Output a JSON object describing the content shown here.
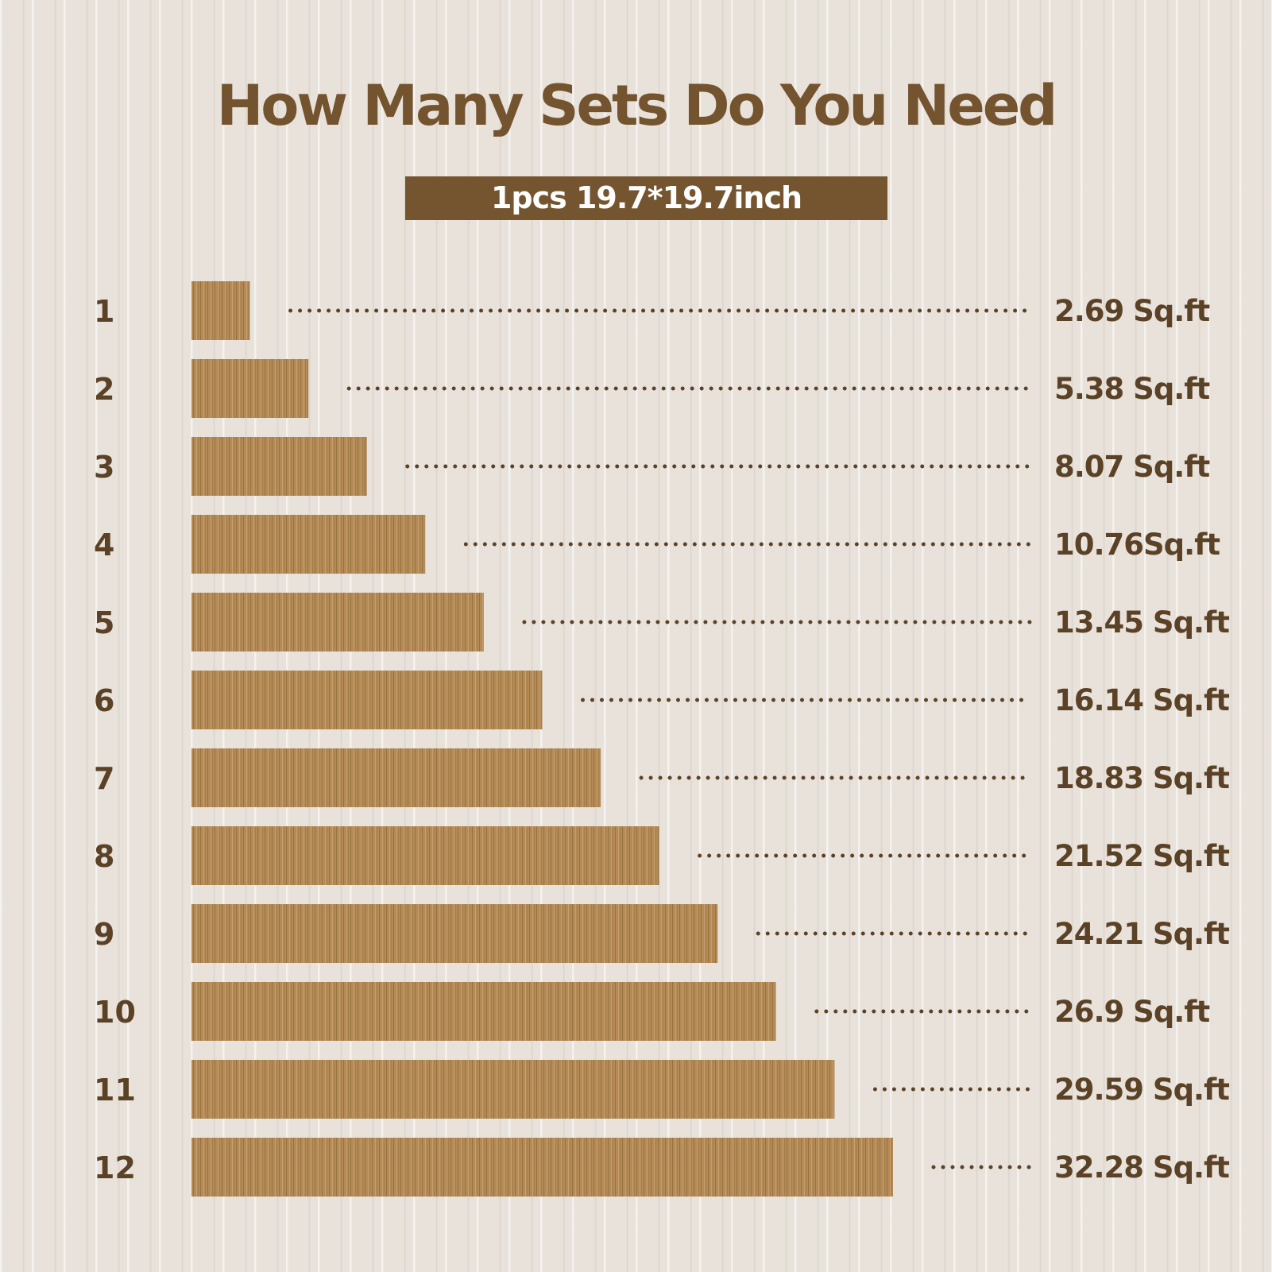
{
  "title": "How Many  Sets Do You Need",
  "subtitle": "1pcs 19.7*19.7inch",
  "colors": {
    "title": "#74532f",
    "banner": "#75552f",
    "bar": "#b48a56",
    "text": "#5b4226"
  },
  "chart_data": {
    "type": "bar",
    "orientation": "horizontal",
    "title": "How Many  Sets Do You Need",
    "subtitle": "1pcs 19.7*19.7inch",
    "xlabel": "",
    "ylabel": "",
    "grid": false,
    "unit": "Sq.ft",
    "categories": [
      "1",
      "2",
      "3",
      "4",
      "5",
      "6",
      "7",
      "8",
      "9",
      "10",
      "11",
      "12"
    ],
    "values": [
      2.69,
      5.38,
      8.07,
      10.76,
      13.45,
      16.14,
      18.83,
      21.52,
      24.21,
      26.9,
      29.59,
      32.28
    ],
    "value_labels": [
      "2.69 Sq.ft",
      "5.38 Sq.ft",
      "8.07 Sq.ft",
      "10.76Sq.ft",
      "13.45 Sq.ft",
      "16.14 Sq.ft",
      "18.83 Sq.ft",
      "21.52 Sq.ft",
      "24.21 Sq.ft",
      "26.9 Sq.ft",
      "29.59 Sq.ft",
      "32.28 Sq.ft"
    ],
    "xlim": [
      0,
      32.28
    ]
  }
}
